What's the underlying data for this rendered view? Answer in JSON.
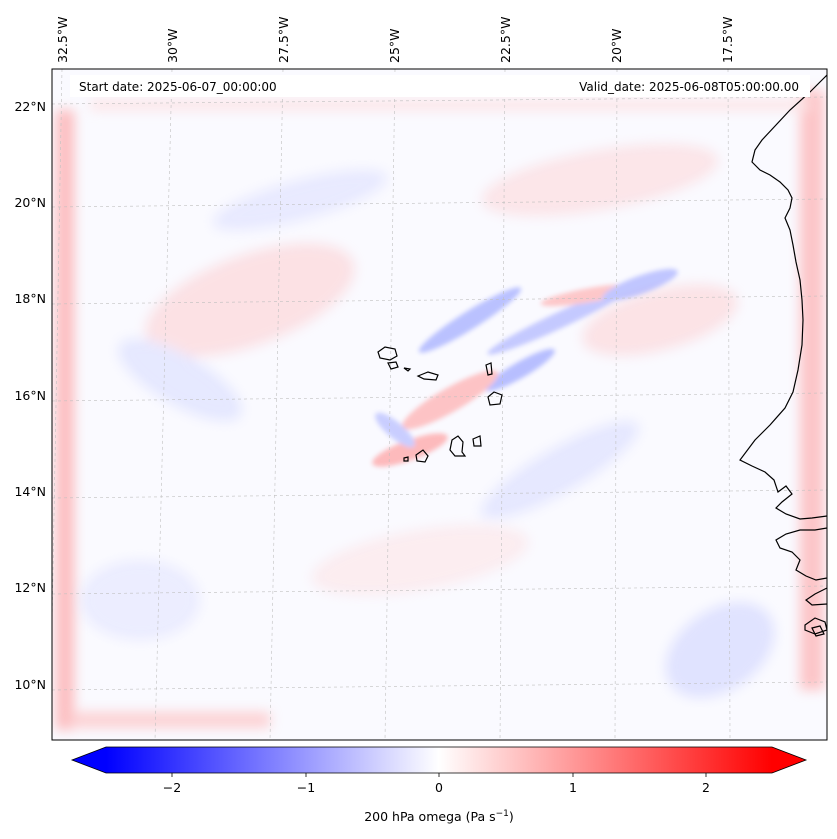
{
  "map": {
    "start_label": "Start date: 2025-06-07_00:00:00",
    "valid_label": "Valid_date: 2025-06-08T05:00:00.00",
    "lon_labels": [
      "32.5°W",
      "30°W",
      "27.5°W",
      "25°W",
      "22.5°W",
      "20°W",
      "17.5°W"
    ],
    "lat_labels": [
      "22°N",
      "20°N",
      "18°N",
      "16°N",
      "14°N",
      "12°N",
      "10°N"
    ],
    "gridlines": true,
    "field_colors": {
      "negative": "#0000ff",
      "neutral": "#ffffff",
      "positive": "#ff0000"
    }
  },
  "colorbar": {
    "label": "200 hPa omega (Pa s",
    "label_sup": "−1",
    "label_close": ")",
    "ticks": [
      "−2",
      "−1",
      "0",
      "1",
      "2"
    ],
    "range": [
      -2.6,
      2.6
    ],
    "extend": "both"
  }
}
